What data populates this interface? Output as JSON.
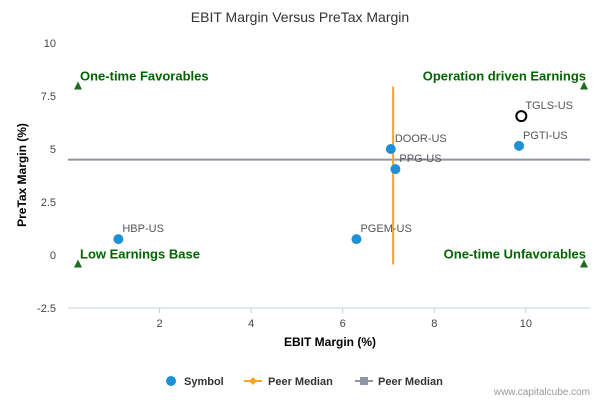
{
  "chart_data": {
    "type": "scatter",
    "title": "EBIT Margin Versus PreTax Margin",
    "xlabel": "EBIT Margin (%)",
    "ylabel": "PreTax Margin (%)",
    "xlim": [
      0,
      11.4
    ],
    "ylim": [
      -2.5,
      10
    ],
    "x_ticks": [
      2,
      4,
      6,
      8,
      10
    ],
    "y_ticks": [
      -2.5,
      0,
      2.5,
      5,
      7.5,
      10
    ],
    "y_tick_labels": [
      "-2.5",
      "0",
      "2.5",
      "5",
      "7.5",
      "10"
    ],
    "grid": false,
    "points": [
      {
        "label": "HBP-US",
        "x": 1.1,
        "y": 0.75,
        "style": "filled"
      },
      {
        "label": "PGEM-US",
        "x": 6.3,
        "y": 0.75,
        "style": "filled"
      },
      {
        "label": "DOOR-US",
        "x": 7.05,
        "y": 5.0,
        "style": "filled"
      },
      {
        "label": "PPG-US",
        "x": 7.15,
        "y": 4.05,
        "style": "filled"
      },
      {
        "label": "PGTI-US",
        "x": 9.85,
        "y": 5.15,
        "style": "filled"
      },
      {
        "label": "TGLS-US",
        "x": 9.9,
        "y": 6.55,
        "style": "hollow"
      }
    ],
    "peer_median_x": 7.1,
    "peer_median_y": 4.5,
    "vertical_median_range": [
      -0.45,
      7.95
    ],
    "horizontal_median_range": [
      0,
      11.4
    ],
    "quadrant_labels": {
      "top_left": "One-time Favorables",
      "top_right": "Operation driven Earnings",
      "bottom_left": "Low Earnings Base",
      "bottom_right": "One-time Unfavorables"
    },
    "quadrant_markers_y": [
      7.95,
      -0.45
    ],
    "legend": [
      {
        "label": "Symbol",
        "kind": "dot"
      },
      {
        "label": "Peer Median",
        "kind": "diamond-line"
      },
      {
        "label": "Peer Median",
        "kind": "square-line"
      }
    ],
    "legend_placement": "bottom",
    "credit": "www.capitalcube.com"
  },
  "colors": {
    "point": "#1e90d6",
    "hollow_point": "#000000",
    "median_vertical": "#f5a623",
    "median_horizontal": "#8f95a3",
    "quadrant_text": "#006400",
    "quadrant_marker": "#1f6b1f",
    "axis": "#c0d0e0"
  }
}
